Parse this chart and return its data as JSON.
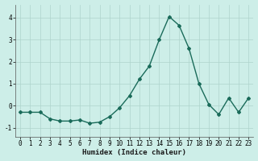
{
  "x": [
    0,
    1,
    2,
    3,
    4,
    5,
    6,
    7,
    8,
    9,
    10,
    11,
    12,
    13,
    14,
    15,
    16,
    17,
    18,
    19,
    20,
    21,
    22,
    23
  ],
  "y": [
    -0.3,
    -0.3,
    -0.3,
    -0.6,
    -0.7,
    -0.7,
    -0.65,
    -0.8,
    -0.75,
    -0.5,
    -0.1,
    0.45,
    1.2,
    1.8,
    3.0,
    4.05,
    3.65,
    2.6,
    1.0,
    0.05,
    -0.4,
    0.35,
    -0.3,
    0.35
  ],
  "line_color": "#1a6b5a",
  "marker": "D",
  "marker_size": 2.0,
  "linewidth": 1.0,
  "xlabel": "Humidex (Indice chaleur)",
  "xlabel_fontsize": 6.5,
  "xlim": [
    -0.5,
    23.5
  ],
  "ylim": [
    -1.4,
    4.6
  ],
  "yticks": [
    -1,
    0,
    1,
    2,
    3,
    4
  ],
  "xticks": [
    0,
    1,
    2,
    3,
    4,
    5,
    6,
    7,
    8,
    9,
    10,
    11,
    12,
    13,
    14,
    15,
    16,
    17,
    18,
    19,
    20,
    21,
    22,
    23
  ],
  "bg_color": "#cdeee8",
  "grid_color": "#aed4cc",
  "tick_fontsize": 5.5
}
